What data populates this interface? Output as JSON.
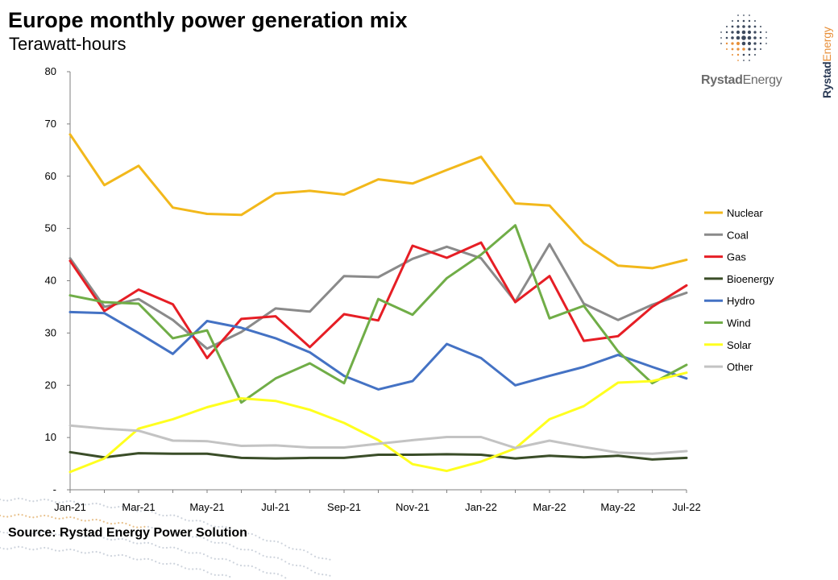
{
  "header": {
    "title": "Europe monthly power generation mix",
    "subtitle": "Terawatt-hours"
  },
  "footer": {
    "source": "Source: Rystad Energy Power Solution"
  },
  "branding": {
    "logo_primary": "Rystad",
    "logo_secondary": "Energy",
    "logo_icon": "dotted-globe-icon",
    "accent_color": "#e8903a",
    "navy_color": "#2a3a55"
  },
  "chart_data": {
    "type": "line",
    "title": "Europe monthly power generation mix",
    "ylabel": "Terawatt-hours",
    "xlabel": "",
    "ylim": [
      0,
      80
    ],
    "y_ticks": [
      "-",
      "10",
      "20",
      "30",
      "40",
      "50",
      "60",
      "70",
      "80"
    ],
    "grid": false,
    "legend_position": "right",
    "x_tick_labels": [
      "Jan-21",
      "Mar-21",
      "May-21",
      "Jul-21",
      "Sep-21",
      "Nov-21",
      "Jan-22",
      "Mar-22",
      "May-22",
      "Jul-22"
    ],
    "categories": [
      "Jan-21",
      "Feb-21",
      "Mar-21",
      "Apr-21",
      "May-21",
      "Jun-21",
      "Jul-21",
      "Aug-21",
      "Sep-21",
      "Oct-21",
      "Nov-21",
      "Dec-21",
      "Jan-22",
      "Feb-22",
      "Mar-22",
      "Apr-22",
      "May-22",
      "Jun-22",
      "Jul-22"
    ],
    "series": [
      {
        "name": "Nuclear",
        "color": "#f2b81b",
        "values": [
          68.0,
          58.3,
          62.0,
          54.0,
          52.8,
          52.6,
          56.7,
          57.2,
          56.5,
          59.4,
          58.6,
          61.2,
          63.7,
          54.8,
          54.4,
          47.2,
          42.9,
          42.4,
          44.0
        ]
      },
      {
        "name": "Coal",
        "color": "#8a8a8a",
        "values": [
          44.3,
          35.0,
          36.5,
          32.5,
          27.0,
          30.2,
          34.7,
          34.1,
          40.9,
          40.7,
          44.2,
          46.5,
          44.3,
          36.0,
          47.0,
          35.6,
          32.5,
          35.4,
          37.7
        ]
      },
      {
        "name": "Gas",
        "color": "#e61e25",
        "values": [
          43.8,
          34.2,
          38.3,
          35.5,
          25.2,
          32.7,
          33.2,
          27.3,
          33.6,
          32.4,
          46.7,
          44.4,
          47.3,
          35.9,
          40.9,
          28.5,
          29.4,
          35.0,
          39.1
        ]
      },
      {
        "name": "Bioenergy",
        "color": "#3a4d28",
        "values": [
          7.2,
          6.2,
          7.0,
          6.9,
          6.9,
          6.1,
          6.0,
          6.1,
          6.1,
          6.7,
          6.7,
          6.8,
          6.7,
          6.0,
          6.5,
          6.2,
          6.5,
          5.8,
          6.1
        ]
      },
      {
        "name": "Hydro",
        "color": "#4472c4",
        "values": [
          34.0,
          33.8,
          30.0,
          26.0,
          32.3,
          31.0,
          29.0,
          26.3,
          21.8,
          19.2,
          20.8,
          27.9,
          25.2,
          20.0,
          21.8,
          23.5,
          25.8,
          23.5,
          21.3
        ]
      },
      {
        "name": "Wind",
        "color": "#70ad47",
        "values": [
          37.2,
          35.9,
          35.6,
          29.0,
          30.5,
          16.7,
          21.3,
          24.2,
          20.4,
          36.5,
          33.5,
          40.5,
          45.0,
          50.6,
          32.8,
          35.2,
          26.5,
          20.4,
          23.9
        ]
      },
      {
        "name": "Solar",
        "color": "#ffff1f",
        "values": [
          3.4,
          6.0,
          11.7,
          13.5,
          15.8,
          17.5,
          17.0,
          15.3,
          12.8,
          9.5,
          4.9,
          3.6,
          5.4,
          7.9,
          13.5,
          16.0,
          20.5,
          20.8,
          22.4
        ]
      },
      {
        "name": "Other",
        "color": "#c3c3c3",
        "values": [
          12.3,
          11.7,
          11.3,
          9.4,
          9.3,
          8.4,
          8.5,
          8.1,
          8.1,
          8.8,
          9.5,
          10.1,
          10.1,
          8.0,
          9.4,
          8.2,
          7.1,
          6.9,
          7.4
        ]
      }
    ]
  }
}
